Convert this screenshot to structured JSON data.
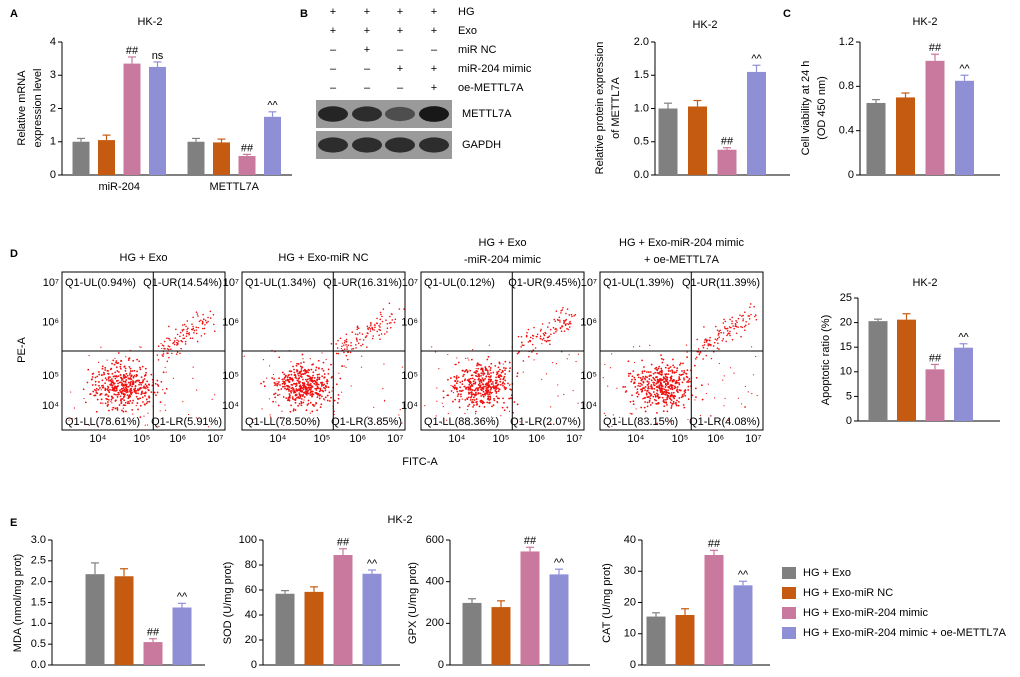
{
  "panel_labels": [
    "A",
    "B",
    "C",
    "D",
    "E"
  ],
  "legend": {
    "entries": [
      {
        "name": "HG + Exo",
        "color": "#808080"
      },
      {
        "name": "HG + Exo-miR NC",
        "color": "#c55a11"
      },
      {
        "name": "HG + Exo-miR-204 mimic",
        "color": "#c9789e"
      },
      {
        "name": "HG + Exo-miR-204 mimic + oe-METTL7A",
        "color": "#8f8fd6"
      }
    ]
  },
  "blot": {
    "rows": [
      {
        "label": "HG",
        "signs": [
          "+",
          "+",
          "+",
          "+"
        ]
      },
      {
        "label": "Exo",
        "signs": [
          "+",
          "+",
          "+",
          "+"
        ]
      },
      {
        "label": "miR NC",
        "signs": [
          "–",
          "+",
          "–",
          "–"
        ]
      },
      {
        "label": "miR-204 mimic",
        "signs": [
          "–",
          "–",
          "+",
          "+"
        ]
      },
      {
        "label": "oe-METTL7A",
        "signs": [
          "–",
          "–",
          "–",
          "+"
        ]
      }
    ],
    "bands": [
      "METTL7A",
      "GAPDH"
    ]
  },
  "flow": {
    "x_label": "FITC-A",
    "y_label": "PE-A",
    "xticks": [
      "10⁴",
      "10⁵",
      "10⁶",
      "10⁷"
    ],
    "yticks": [
      "10⁴",
      "10⁵",
      "10⁶",
      "10⁷"
    ],
    "plots": [
      {
        "title": [
          "HG + Exo"
        ],
        "UL": "Q1-UL(0.94%)",
        "UR": "Q1-UR(14.54%)",
        "LL": "Q1-LL(78.61%)",
        "LR": "Q1-LR(5.91%)"
      },
      {
        "title": [
          "HG + Exo-miR NC"
        ],
        "UL": "Q1-UL(1.34%)",
        "UR": "Q1-UR(16.31%)",
        "LL": "Q1-LL(78.50%)",
        "LR": "Q1-LR(3.85%)"
      },
      {
        "title": [
          "HG + Exo",
          "-miR-204 mimic"
        ],
        "UL": "Q1-UL(0.12%)",
        "UR": "Q1-UR(9.45%)",
        "LL": "Q1-LL(88.36%)",
        "LR": "Q1-LR(2.07%)"
      },
      {
        "title": [
          "HG + Exo-miR-204 mimic",
          "+ oe-METTL7A"
        ],
        "UL": "Q1-UL(1.39%)",
        "UR": "Q1-UR(11.39%)",
        "LL": "Q1-LL(83.15%)",
        "LR": "Q1-LR(4.08%)"
      }
    ]
  },
  "e_title": "HK-2",
  "chart_data": [
    {
      "type": "bar",
      "title": "HK-2",
      "ylabel": [
        "Relative mRNA",
        "expression level"
      ],
      "categories": [
        "miR-204",
        "METTL7A"
      ],
      "ylim": [
        0,
        4
      ],
      "yticks": [
        0,
        1,
        2,
        3,
        4
      ],
      "series": [
        {
          "values": [
            1.0,
            1.0
          ],
          "errors": [
            0.1,
            0.1
          ],
          "labels": [
            null,
            null
          ]
        },
        {
          "values": [
            1.05,
            0.98
          ],
          "errors": [
            0.15,
            0.1
          ],
          "labels": [
            null,
            null
          ]
        },
        {
          "values": [
            3.35,
            0.57
          ],
          "errors": [
            0.2,
            0.05
          ],
          "labels": [
            "##",
            "##"
          ]
        },
        {
          "values": [
            3.25,
            1.75
          ],
          "errors": [
            0.15,
            0.15
          ],
          "labels": [
            "ns",
            "^^"
          ]
        }
      ]
    },
    {
      "type": "bar",
      "title": "HK-2",
      "ylabel": [
        "Relative protein expression",
        "of METTL7A"
      ],
      "categories": [
        null
      ],
      "ylim": [
        0,
        2
      ],
      "yticks": [
        {
          "value": 0,
          "label": "0.0"
        },
        0.5,
        {
          "value": 1,
          "label": "1.0"
        },
        1.5,
        {
          "value": 2,
          "label": "2.0"
        }
      ],
      "series": [
        {
          "values": [
            1.0
          ],
          "errors": [
            0.08
          ],
          "labels": [
            null
          ]
        },
        {
          "values": [
            1.03
          ],
          "errors": [
            0.09
          ],
          "labels": [
            null
          ]
        },
        {
          "values": [
            0.38
          ],
          "errors": [
            0.03
          ],
          "labels": [
            "##"
          ]
        },
        {
          "values": [
            1.55
          ],
          "errors": [
            0.1
          ],
          "labels": [
            "^^"
          ]
        }
      ]
    },
    {
      "type": "bar",
      "title": "HK-2",
      "ylabel": [
        "Cell viability at 24 h",
        "(OD 450 nm)"
      ],
      "categories": [
        null
      ],
      "ylim": [
        0,
        1.2
      ],
      "yticks": [
        0,
        0.4,
        0.8,
        1.2
      ],
      "series": [
        {
          "values": [
            0.65
          ],
          "errors": [
            0.03
          ],
          "labels": [
            null
          ]
        },
        {
          "values": [
            0.7
          ],
          "errors": [
            0.04
          ],
          "labels": [
            null
          ]
        },
        {
          "values": [
            1.03
          ],
          "errors": [
            0.06
          ],
          "labels": [
            "##"
          ]
        },
        {
          "values": [
            0.85
          ],
          "errors": [
            0.05
          ],
          "labels": [
            "^^"
          ]
        }
      ]
    },
    {
      "type": "bar",
      "title": "HK-2",
      "ylabel": [
        "Apoptotic ratio (%)"
      ],
      "categories": [
        null
      ],
      "ylim": [
        0,
        25
      ],
      "yticks": [
        0,
        5,
        10,
        15,
        20,
        25
      ],
      "series": [
        {
          "values": [
            20.3
          ],
          "errors": [
            0.4
          ],
          "labels": [
            null
          ]
        },
        {
          "values": [
            20.6
          ],
          "errors": [
            1.2
          ],
          "labels": [
            null
          ]
        },
        {
          "values": [
            10.5
          ],
          "errors": [
            1.0
          ],
          "labels": [
            "##"
          ]
        },
        {
          "values": [
            14.9
          ],
          "errors": [
            0.8
          ],
          "labels": [
            "^^"
          ]
        }
      ]
    },
    {
      "type": "bar",
      "ylabel": [
        "MDA (nmol/mg prot)"
      ],
      "categories": [
        null
      ],
      "ylim": [
        0,
        3
      ],
      "yticks": [
        {
          "value": 0,
          "label": "0.0"
        },
        0.5,
        {
          "value": 1,
          "label": "1.0"
        },
        1.5,
        {
          "value": 2,
          "label": "2.0"
        },
        2.5,
        {
          "value": 3,
          "label": "3.0"
        }
      ],
      "series": [
        {
          "values": [
            2.18
          ],
          "errors": [
            0.27
          ],
          "labels": [
            null
          ]
        },
        {
          "values": [
            2.13
          ],
          "errors": [
            0.18
          ],
          "labels": [
            null
          ]
        },
        {
          "values": [
            0.55
          ],
          "errors": [
            0.08
          ],
          "labels": [
            "##"
          ]
        },
        {
          "values": [
            1.38
          ],
          "errors": [
            0.1
          ],
          "labels": [
            "^^"
          ]
        }
      ]
    },
    {
      "type": "bar",
      "ylabel": [
        "SOD (U/mg prot)"
      ],
      "categories": [
        null
      ],
      "ylim": [
        0,
        100
      ],
      "yticks": [
        0,
        20,
        40,
        60,
        80,
        100
      ],
      "series": [
        {
          "values": [
            57
          ],
          "errors": [
            2.5
          ],
          "labels": [
            null
          ]
        },
        {
          "values": [
            58.5
          ],
          "errors": [
            4
          ],
          "labels": [
            null
          ]
        },
        {
          "values": [
            88
          ],
          "errors": [
            5
          ],
          "labels": [
            "##"
          ]
        },
        {
          "values": [
            73
          ],
          "errors": [
            3
          ],
          "labels": [
            "^^"
          ]
        }
      ]
    },
    {
      "type": "bar",
      "ylabel": [
        "GPX (U/mg prot)"
      ],
      "categories": [
        null
      ],
      "ylim": [
        0,
        600
      ],
      "yticks": [
        0,
        200,
        400,
        600
      ],
      "series": [
        {
          "values": [
            298
          ],
          "errors": [
            20
          ],
          "labels": [
            null
          ]
        },
        {
          "values": [
            278
          ],
          "errors": [
            30
          ],
          "labels": [
            null
          ]
        },
        {
          "values": [
            545
          ],
          "errors": [
            20
          ],
          "labels": [
            "##"
          ]
        },
        {
          "values": [
            435
          ],
          "errors": [
            25
          ],
          "labels": [
            "^^"
          ]
        }
      ]
    },
    {
      "type": "bar",
      "ylabel": [
        "CAT (U/mg prot)"
      ],
      "categories": [
        null
      ],
      "ylim": [
        0,
        40
      ],
      "yticks": [
        0,
        10,
        20,
        30,
        40
      ],
      "series": [
        {
          "values": [
            15.5
          ],
          "errors": [
            1.2
          ],
          "labels": [
            null
          ]
        },
        {
          "values": [
            16
          ],
          "errors": [
            2
          ],
          "labels": [
            null
          ]
        },
        {
          "values": [
            35.2
          ],
          "errors": [
            1.5
          ],
          "labels": [
            "##"
          ]
        },
        {
          "values": [
            25.5
          ],
          "errors": [
            1.3
          ],
          "labels": [
            "^^"
          ]
        }
      ]
    }
  ]
}
